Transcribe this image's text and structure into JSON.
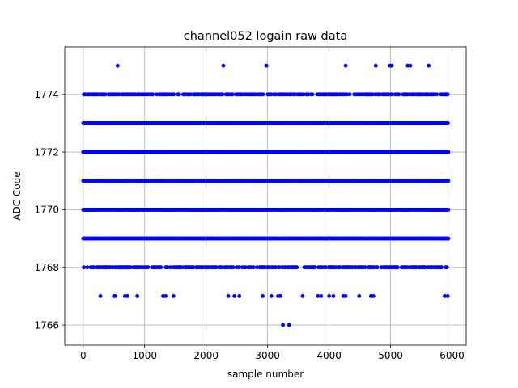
{
  "chart_data": {
    "type": "scatter",
    "title": "channel052 logain raw data",
    "xlabel": "sample number",
    "ylabel": "ADC Code",
    "xlim": [
      -300,
      6230
    ],
    "ylim": [
      1765.3,
      1775.65
    ],
    "xticks": [
      0,
      1000,
      2000,
      3000,
      4000,
      5000,
      6000
    ],
    "yticks": [
      1766,
      1768,
      1770,
      1772,
      1774
    ],
    "grid": true,
    "marker_color": "#0000ff",
    "series": [
      {
        "dense_levels": [
          1768,
          1769,
          1770,
          1771,
          1772,
          1773,
          1774
        ],
        "sparse_points": [
          [
            560,
            1775
          ],
          [
            2280,
            1775
          ],
          [
            2980,
            1775
          ],
          [
            4270,
            1775
          ],
          [
            4760,
            1775
          ],
          [
            4990,
            1775
          ],
          [
            5020,
            1775
          ],
          [
            5280,
            1775
          ],
          [
            5320,
            1775
          ],
          [
            5620,
            1775
          ],
          [
            280,
            1767
          ],
          [
            500,
            1767
          ],
          [
            520,
            1767
          ],
          [
            680,
            1767
          ],
          [
            720,
            1767
          ],
          [
            880,
            1767
          ],
          [
            1300,
            1767
          ],
          [
            1340,
            1767
          ],
          [
            1470,
            1767
          ],
          [
            2360,
            1767
          ],
          [
            2460,
            1767
          ],
          [
            2540,
            1767
          ],
          [
            2920,
            1767
          ],
          [
            3060,
            1767
          ],
          [
            3170,
            1767
          ],
          [
            3210,
            1767
          ],
          [
            3570,
            1767
          ],
          [
            3820,
            1767
          ],
          [
            3870,
            1767
          ],
          [
            4000,
            1767
          ],
          [
            4070,
            1767
          ],
          [
            4230,
            1767
          ],
          [
            4270,
            1767
          ],
          [
            4490,
            1767
          ],
          [
            4680,
            1767
          ],
          [
            4720,
            1767
          ],
          [
            5880,
            1767
          ],
          [
            5930,
            1767
          ],
          [
            3250,
            1766
          ],
          [
            3350,
            1766
          ]
        ]
      }
    ]
  }
}
